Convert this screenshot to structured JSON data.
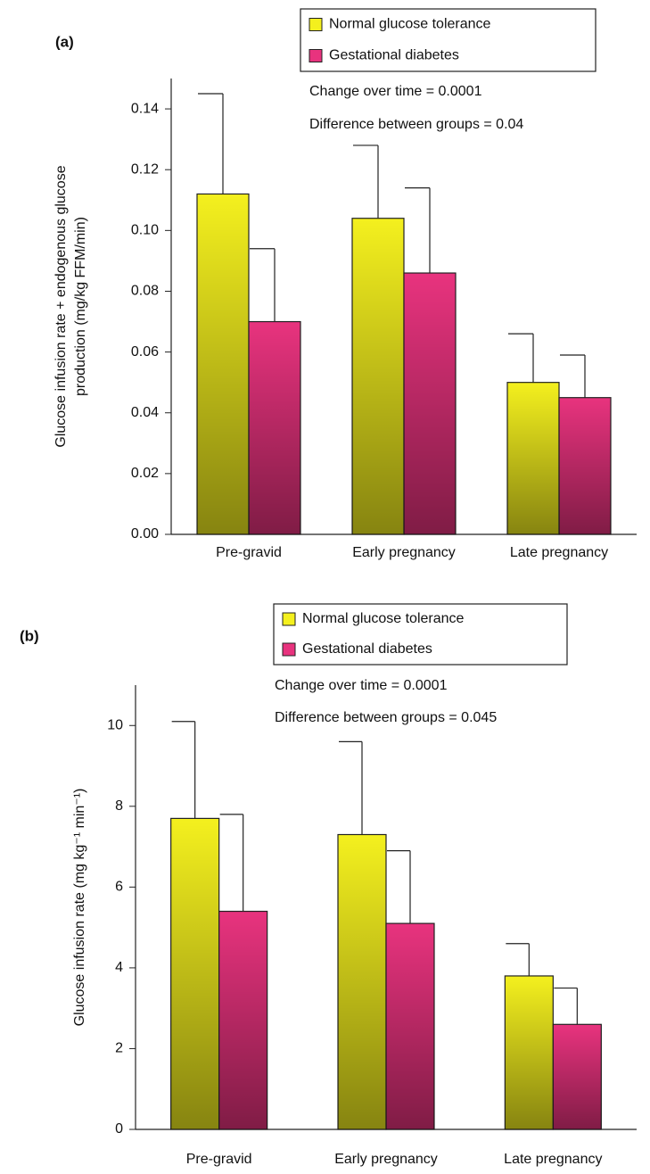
{
  "chart_data": [
    {
      "type": "bar",
      "panel": "(a)",
      "ylabel": [
        "Glucose infusion rate + endogenous glucose",
        "production (mg/kg FFM/min)"
      ],
      "annotations": [
        "Change over time = 0.0001",
        "Difference between groups = 0.04"
      ],
      "categories": [
        "Pre-gravid",
        "Early pregnancy",
        "Late pregnancy"
      ],
      "series": [
        {
          "name": "Normal glucose tolerance",
          "color": "#f4f01e",
          "values": [
            0.112,
            0.104,
            0.05
          ],
          "errors": [
            0.033,
            0.024,
            0.016
          ]
        },
        {
          "name": "Gestational diabetes",
          "color": "#e8337e",
          "values": [
            0.07,
            0.086,
            0.045
          ],
          "errors": [
            0.024,
            0.028,
            0.014
          ]
        }
      ],
      "ylim": [
        0,
        0.15
      ],
      "yticks": [
        {
          "value": 0,
          "label": "0.00"
        },
        {
          "value": 0.02,
          "label": "0.02"
        },
        {
          "value": 0.04,
          "label": "0.04"
        },
        {
          "value": 0.06,
          "label": "0.06"
        },
        {
          "value": 0.08,
          "label": "0.08"
        },
        {
          "value": 0.1,
          "label": "0.10"
        },
        {
          "value": 0.12,
          "label": "0.12"
        },
        {
          "value": 0.14,
          "label": "0.14"
        }
      ]
    },
    {
      "type": "bar",
      "panel": "(b)",
      "ylabel": [
        "Glucose infusion rate (mg kg⁻¹ min⁻¹)"
      ],
      "annotations": [
        "Change over time = 0.0001",
        "Difference between groups = 0.045"
      ],
      "categories": [
        "Pre-gravid",
        "Early pregnancy",
        "Late pregnancy"
      ],
      "series": [
        {
          "name": "Normal glucose tolerance",
          "color": "#f4f01e",
          "values": [
            7.7,
            7.3,
            3.8
          ],
          "errors": [
            2.4,
            2.3,
            0.8
          ]
        },
        {
          "name": "Gestational diabetes",
          "color": "#e8337e",
          "values": [
            5.4,
            5.1,
            2.6
          ],
          "errors": [
            2.4,
            1.8,
            0.9
          ]
        }
      ],
      "ylim": [
        0,
        11
      ],
      "yticks": [
        0,
        2,
        4,
        6,
        8,
        10
      ]
    }
  ]
}
